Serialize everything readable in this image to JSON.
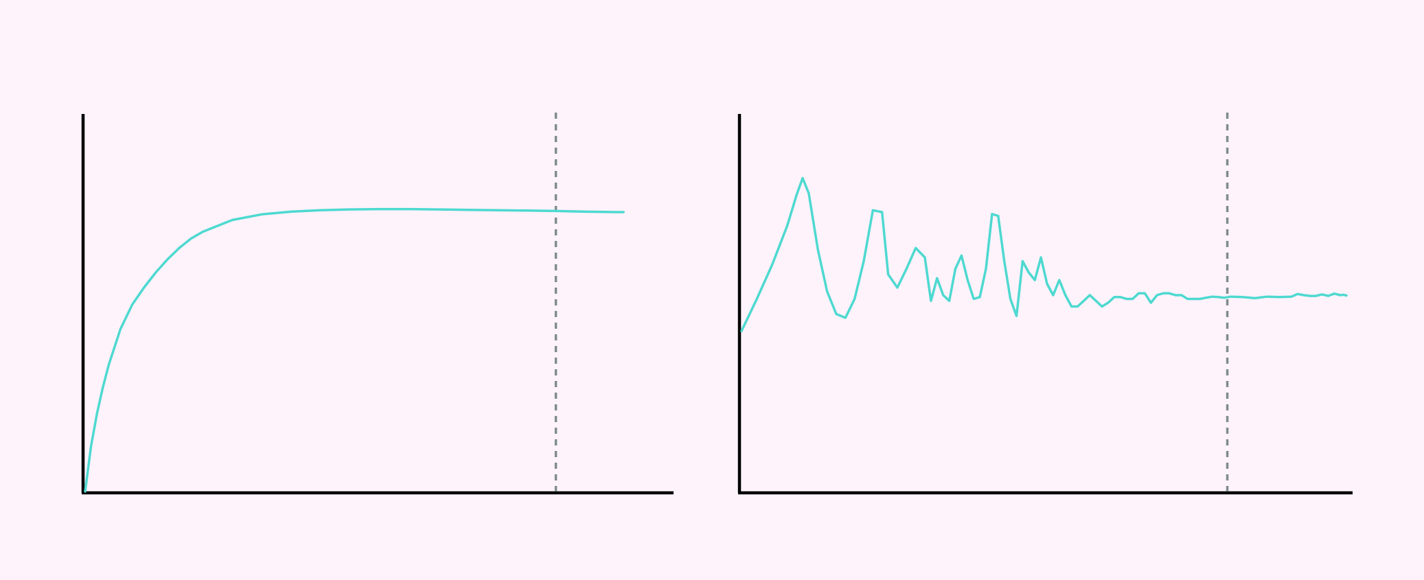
{
  "colors": {
    "background": "#fff3fb",
    "series": "#4dd9d0",
    "axis": "#000000",
    "reference_line": "#7f8c8d"
  },
  "chart_data": [
    {
      "type": "line",
      "title": "",
      "xlabel": "",
      "ylabel": "",
      "grid": false,
      "axes_shown": [
        "left",
        "bottom"
      ],
      "ticks_shown": false,
      "xlim": [
        0,
        100
      ],
      "ylim": [
        0,
        100
      ],
      "vertical_reference_line": {
        "x": 80,
        "style": "dashed"
      },
      "series": [
        {
          "x": [
            0,
            1,
            2,
            3,
            4,
            6,
            8,
            10,
            12,
            14,
            16,
            18,
            20,
            25,
            30,
            35,
            40,
            45,
            50,
            55,
            60,
            65,
            70,
            75,
            80,
            85,
            90,
            91.5
          ],
          "y": [
            0,
            12,
            20.5,
            27.5,
            33.5,
            43,
            49.5,
            54,
            58,
            61.5,
            64.5,
            67,
            68.8,
            71.9,
            73.4,
            74.1,
            74.5,
            74.7,
            74.8,
            74.8,
            74.7,
            74.6,
            74.5,
            74.4,
            74.3,
            74.1,
            74.0,
            74.0
          ]
        }
      ]
    },
    {
      "type": "line",
      "title": "",
      "xlabel": "",
      "ylabel": "",
      "grid": false,
      "axes_shown": [
        "left",
        "bottom"
      ],
      "ticks_shown": false,
      "xlim": [
        0,
        100
      ],
      "ylim": [
        0,
        100
      ],
      "vertical_reference_line": {
        "x": 79.5,
        "style": "dashed"
      },
      "series": [
        {
          "x": [
            0,
            2.5,
            5,
            7.5,
            9,
            10,
            11,
            12.5,
            14,
            15.5,
            17,
            18.5,
            20,
            21.5,
            23,
            24,
            25.5,
            27,
            28.5,
            30,
            31,
            32,
            33,
            34,
            35,
            36,
            37,
            38,
            39,
            40,
            41,
            42,
            43,
            44,
            45,
            46,
            47,
            48,
            49,
            50,
            51,
            52,
            53,
            54,
            55,
            56,
            57,
            58,
            59,
            60,
            61,
            62,
            63,
            64,
            65,
            66,
            67,
            68,
            69,
            70,
            71,
            72,
            73,
            74,
            75,
            76,
            77,
            78,
            79,
            80,
            82,
            84,
            86,
            88,
            90,
            91,
            92,
            93,
            94,
            95,
            96,
            97,
            98,
            98.5,
            99
          ],
          "y": [
            42.5,
            51,
            60,
            70.5,
            78.5,
            83,
            79,
            64,
            53,
            47,
            46,
            51,
            61,
            74.5,
            74,
            57.5,
            54,
            59,
            64.5,
            62,
            50.5,
            56.5,
            52,
            50.5,
            59,
            62.5,
            56,
            51,
            51.5,
            59,
            73.5,
            73,
            61,
            51,
            46.5,
            61,
            58,
            56,
            62,
            55,
            52,
            56,
            52,
            49,
            49,
            50.5,
            52,
            50.5,
            49,
            50,
            51.5,
            51.5,
            51,
            51,
            52.5,
            52.5,
            50,
            52,
            52.5,
            52.5,
            52,
            52,
            51,
            51,
            51,
            51.3,
            51.6,
            51.5,
            51.3,
            51.6,
            51.5,
            51.2,
            51.6,
            51.5,
            51.6,
            52.3,
            52.0,
            51.8,
            51.8,
            52.2,
            51.8,
            52.4,
            52.0,
            52.1,
            51.9
          ]
        }
      ]
    }
  ]
}
